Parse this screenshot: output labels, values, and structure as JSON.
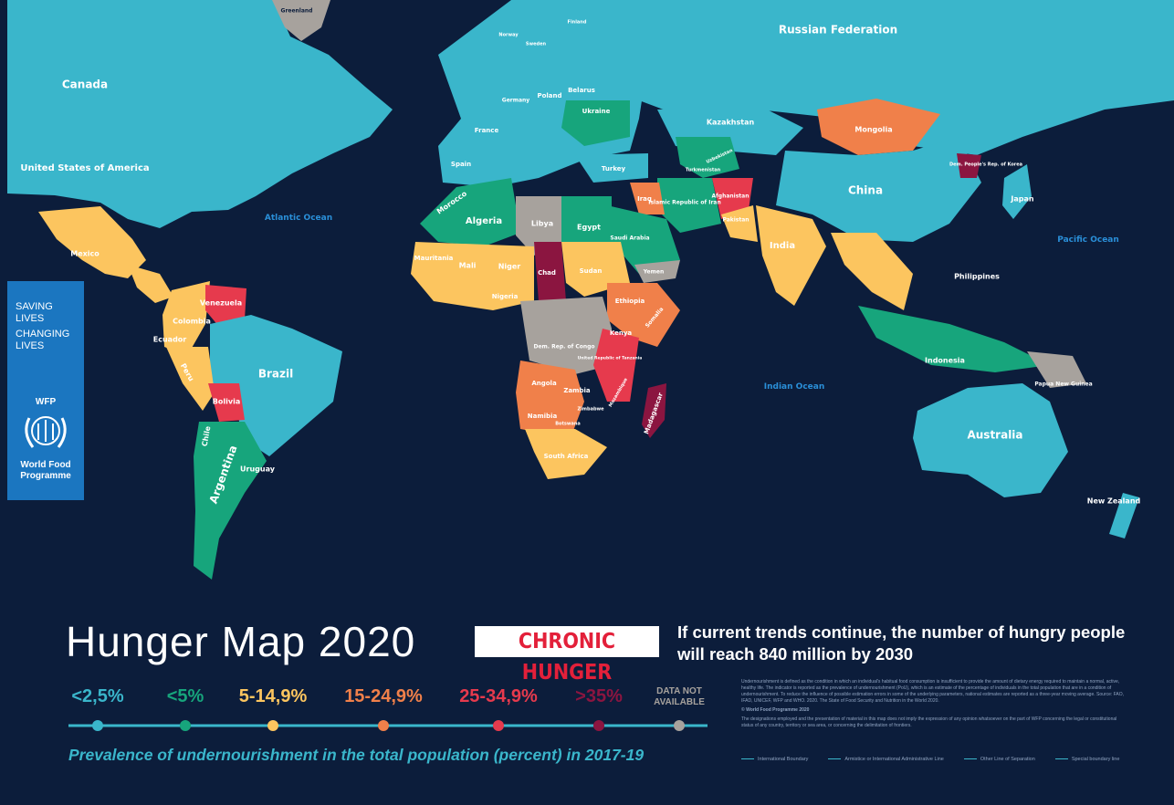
{
  "sidebar": {
    "line1": "SAVING LIVES",
    "line2": "CHANGING LIVES",
    "logo": "WFP",
    "org": "World Food Programme"
  },
  "map": {
    "oceans": [
      "Atlantic Ocean",
      "Pacific Ocean",
      "Indian Ocean"
    ],
    "countries": [
      "Canada",
      "United States of America",
      "Mexico",
      "Greenland",
      "Brazil",
      "Argentina",
      "Bolivia",
      "Venezuela",
      "Colombia",
      "Peru",
      "Chile",
      "Uruguay",
      "Ecuador",
      "Russian Federation",
      "Kazakhstan",
      "Mongolia",
      "China",
      "India",
      "Japan",
      "Indonesia",
      "Philippines",
      "Papua New Guinea",
      "Australia",
      "New Zealand",
      "Dem. People's Rep. of Korea",
      "Algeria",
      "Libya",
      "Egypt",
      "Morocco",
      "Mauritania",
      "Mali",
      "Niger",
      "Chad",
      "Sudan",
      "Nigeria",
      "Ethiopia",
      "Kenya",
      "Somalia",
      "Dem. Rep. of Congo",
      "Angola",
      "Zambia",
      "Namibia",
      "Botswana",
      "Zimbabwe",
      "South Africa",
      "Madagascar",
      "Mozambique",
      "United Republic of Tanzania",
      "Saudi Arabia",
      "Islamic Republic of Iran",
      "Iraq",
      "Afghanistan",
      "Pakistan",
      "Turkey",
      "Ukraine",
      "Belarus",
      "Poland",
      "Germany",
      "France",
      "Spain",
      "Norway",
      "Sweden",
      "Finland",
      "Uzbekistan",
      "Turkmenistan",
      "Yemen"
    ]
  },
  "header": {
    "title": "Hunger Map 2020",
    "badge": "CHRONIC HUNGER",
    "tagline": "If current trends continue, the number of hungry people will reach 840 million by 2030"
  },
  "legend": {
    "items": [
      {
        "label": "<2,5%",
        "color": "#3ab6cb"
      },
      {
        "label": "<5%",
        "color": "#17a57c"
      },
      {
        "label": "5-14,9%",
        "color": "#fcc55f"
      },
      {
        "label": "15-24,9%",
        "color": "#f0804a"
      },
      {
        "label": "25-34,9%",
        "color": "#e63a4d"
      },
      {
        "label": ">35%",
        "color": "#8b1540"
      },
      {
        "label": "DATA NOT AVAILABLE",
        "color": "#a7a29d"
      }
    ],
    "caption": "Prevalence of undernourishment in the total population (percent) in 2017-19"
  },
  "notes": {
    "definition": "Undernourishment is defined as the condition in which an individual's habitual food consumption is insufficient to provide the amount of dietary energy required to maintain a normal, active, healthy life. The indicator is reported as the prevalence of undernourishment (PoU), which is an estimate of the percentage of individuals in the total population that are in a condition of undernourishment. To reduce the influence of possible estimation errors in some of the underlying parameters, national estimates are reported as a three-year moving average. Source: FAO, IFAD, UNICEF, WFP and WHO. 2020. The State of Food Security and Nutrition in the World 2020.",
    "copyright": "© World Food Programme 2020",
    "disclaimer": "The designations employed and the presentation of material in this map does not imply the expression of any opinion whatsoever on the part of WFP concerning the legal or constitutional status of any country, territory or sea area, or concerning the delimitation of frontiers.",
    "lines": [
      "International Boundary",
      "Armistice or International Administrative Line",
      "Other Line of Separation",
      "Special boundary line"
    ]
  }
}
